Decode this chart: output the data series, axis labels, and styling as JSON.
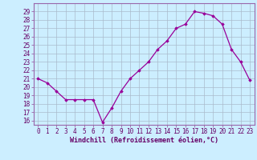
{
  "x": [
    0,
    1,
    2,
    3,
    4,
    5,
    6,
    7,
    8,
    9,
    10,
    11,
    12,
    13,
    14,
    15,
    16,
    17,
    18,
    19,
    20,
    21,
    22,
    23
  ],
  "y": [
    21,
    20.5,
    19.5,
    18.5,
    18.5,
    18.5,
    18.5,
    15.8,
    17.5,
    19.5,
    21,
    22,
    23,
    24.5,
    25.5,
    27,
    27.5,
    29,
    28.8,
    28.5,
    27.5,
    24.5,
    23,
    20.8
  ],
  "line_color": "#990099",
  "marker": "D",
  "marker_size": 1.8,
  "linewidth": 0.9,
  "xlabel": "Windchill (Refroidissement éolien,°C)",
  "xlabel_fontsize": 6.0,
  "ylabel_ticks": [
    16,
    17,
    18,
    19,
    20,
    21,
    22,
    23,
    24,
    25,
    26,
    27,
    28,
    29
  ],
  "xlim": [
    -0.5,
    23.5
  ],
  "ylim": [
    15.5,
    30.0
  ],
  "background_color": "#cceeff",
  "grid_color": "#aabbcc",
  "tick_fontsize": 5.5,
  "spine_color": "#9966aa"
}
